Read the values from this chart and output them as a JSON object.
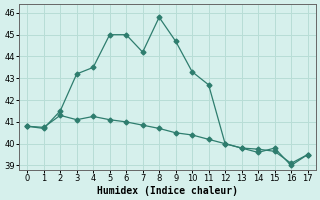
{
  "line1_x": [
    0,
    1,
    2,
    3,
    4,
    5,
    6,
    7,
    8,
    9,
    10,
    11,
    12,
    13,
    14,
    15,
    16,
    17
  ],
  "line1_y": [
    40.8,
    40.7,
    41.5,
    43.2,
    43.5,
    45.0,
    45.0,
    44.2,
    45.8,
    44.7,
    43.3,
    42.7,
    40.0,
    39.8,
    39.6,
    39.8,
    39.0,
    39.5
  ],
  "line2_x": [
    0,
    1,
    2,
    3,
    4,
    5,
    6,
    7,
    8,
    9,
    10,
    11,
    12,
    13,
    14,
    15,
    16,
    17
  ],
  "line2_y": [
    40.8,
    40.75,
    41.3,
    41.1,
    41.25,
    41.1,
    41.0,
    40.85,
    40.7,
    40.5,
    40.4,
    40.2,
    40.0,
    39.8,
    39.75,
    39.65,
    39.1,
    39.5
  ],
  "line_color": "#2e7d6e",
  "bg_color": "#d6f0ec",
  "grid_color": "#b8ddd6",
  "xlabel": "Humidex (Indice chaleur)",
  "xlim": [
    -0.5,
    17.5
  ],
  "ylim": [
    38.8,
    46.4
  ],
  "yticks": [
    39,
    40,
    41,
    42,
    43,
    44,
    45,
    46
  ],
  "xticks": [
    0,
    1,
    2,
    3,
    4,
    5,
    6,
    7,
    8,
    9,
    10,
    11,
    12,
    13,
    14,
    15,
    16,
    17
  ],
  "tick_fontsize": 6.0,
  "xlabel_fontsize": 7.0,
  "marker": "D",
  "markersize": 2.5,
  "linewidth": 0.9
}
